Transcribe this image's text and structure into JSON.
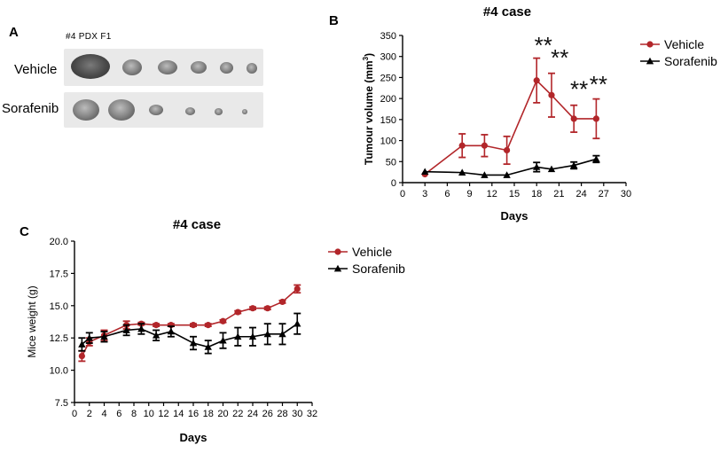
{
  "panel_a": {
    "label": "A",
    "caption": "#4  PDX F1",
    "rows": [
      {
        "label": "Vehicle",
        "tumor_count": 6
      },
      {
        "label": "Sorafenib",
        "tumor_count": 6
      }
    ]
  },
  "colors": {
    "vehicle": "#b2262a",
    "sorafenib": "#000000"
  },
  "chart_data": [
    {
      "id": "B",
      "panel_label": "B",
      "type": "line",
      "title": "#4 case",
      "xlabel": "Days",
      "ylabel_main": "Tumour volume (mm",
      "ylabel_sup": "3",
      "ylabel_end": ")",
      "xlim": [
        0,
        30
      ],
      "ylim": [
        0,
        350
      ],
      "xticks": [
        0,
        3,
        6,
        9,
        12,
        15,
        18,
        21,
        24,
        27,
        30
      ],
      "yticks": [
        0,
        50,
        100,
        150,
        200,
        250,
        300,
        350
      ],
      "series": [
        {
          "name": "Vehicle",
          "marker": "circle",
          "x": [
            3,
            8,
            11,
            14,
            18,
            20,
            23,
            26
          ],
          "y": [
            20,
            88,
            88,
            77,
            243,
            208,
            152,
            152
          ],
          "err": [
            0,
            28,
            26,
            33,
            53,
            52,
            32,
            47
          ]
        },
        {
          "name": "Sorafenib",
          "marker": "triangle",
          "x": [
            3,
            8,
            11,
            14,
            18,
            20,
            23,
            26
          ],
          "y": [
            26,
            24,
            18,
            18,
            37,
            32,
            41,
            56
          ],
          "err": [
            0,
            0,
            0,
            0,
            11,
            0,
            8,
            8
          ]
        }
      ],
      "annotations": [
        {
          "text": "**",
          "x": 18.9,
          "y": 308
        },
        {
          "text": "**",
          "x": 21.1,
          "y": 278
        },
        {
          "text": "**",
          "x": 23.7,
          "y": 203
        },
        {
          "text": "**",
          "x": 26.3,
          "y": 215
        }
      ]
    },
    {
      "id": "C",
      "panel_label": "C",
      "type": "line",
      "title": "#4 case",
      "xlabel": "Days",
      "ylabel": "Mice weight (g)",
      "xlim": [
        0,
        32
      ],
      "ylim": [
        7.5,
        20.0
      ],
      "xticks": [
        0,
        2,
        4,
        6,
        8,
        10,
        12,
        14,
        16,
        18,
        20,
        22,
        24,
        26,
        28,
        30,
        32
      ],
      "yticks": [
        "7.5",
        "10.0",
        "12.5",
        "15.0",
        "17.5",
        "20.0"
      ],
      "series": [
        {
          "name": "Vehicle",
          "marker": "circle",
          "x": [
            1,
            2,
            4,
            7,
            9,
            11,
            13,
            16,
            18,
            20,
            22,
            24,
            26,
            28,
            30
          ],
          "y": [
            11.1,
            12.2,
            12.7,
            13.5,
            13.6,
            13.5,
            13.5,
            13.5,
            13.5,
            13.8,
            14.5,
            14.8,
            14.8,
            15.3,
            16.3
          ],
          "err": [
            0.4,
            0.3,
            0.4,
            0.3,
            0.1,
            0.1,
            0.1,
            0.1,
            0.1,
            0.1,
            0.1,
            0.1,
            0.1,
            0.1,
            0.3
          ]
        },
        {
          "name": "Sorafenib",
          "marker": "triangle",
          "x": [
            1,
            2,
            4,
            7,
            9,
            11,
            13,
            16,
            18,
            20,
            22,
            24,
            26,
            28,
            30
          ],
          "y": [
            12.0,
            12.5,
            12.6,
            13.1,
            13.2,
            12.7,
            13.0,
            12.1,
            11.8,
            12.3,
            12.6,
            12.6,
            12.8,
            12.8,
            13.6
          ],
          "err": [
            0.5,
            0.4,
            0.4,
            0.4,
            0.4,
            0.4,
            0.4,
            0.5,
            0.5,
            0.6,
            0.7,
            0.7,
            0.8,
            0.8,
            0.8
          ]
        }
      ]
    }
  ]
}
